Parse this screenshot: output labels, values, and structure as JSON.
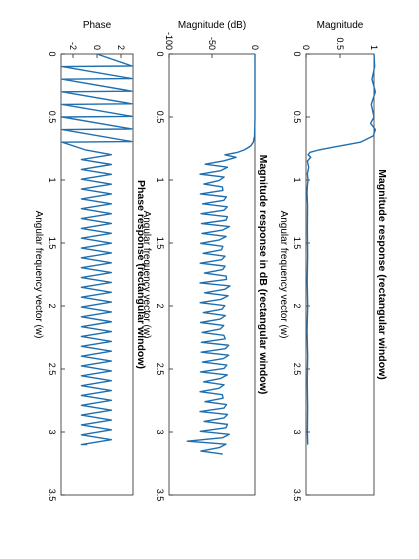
{
  "chart_data": [
    {
      "type": "line",
      "title": "Magnitude response (rectangular window)",
      "xlabel": "Angular frequency vector (w)",
      "ylabel": "Magnitude",
      "xlim": [
        0,
        3.5
      ],
      "ylim": [
        0,
        1
      ],
      "x_ticks": [
        0,
        0.5,
        1,
        1.5,
        2,
        2.5,
        3,
        3.5
      ],
      "x_tick_labels": [
        "0",
        "0.5",
        "1",
        "1.5",
        "2",
        "2.5",
        "3",
        "3.5"
      ],
      "y_ticks": [
        0,
        0.5,
        1
      ],
      "y_tick_labels": [
        "0",
        "0.5",
        "1"
      ],
      "grid": false,
      "series": [
        {
          "x": [
            0,
            0.1,
            0.2,
            0.3,
            0.4,
            0.5,
            0.55,
            0.6,
            0.65,
            0.7,
            0.72,
            0.74,
            0.76,
            0.78,
            0.8,
            0.82,
            0.85,
            0.9,
            0.95,
            1.0,
            1.05,
            1.1,
            1.2,
            1.4,
            1.6,
            1.8,
            2.0,
            2.2,
            2.4,
            2.6,
            2.8,
            3.0,
            3.1
          ],
          "y": [
            1.0,
            1.01,
            0.97,
            1.02,
            0.96,
            1.0,
            0.95,
            1.02,
            0.99,
            0.8,
            0.6,
            0.4,
            0.2,
            0.06,
            0.03,
            0.07,
            0.02,
            0.04,
            0.02,
            0.03,
            0.02,
            0.02,
            0.02,
            0.015,
            0.015,
            0.015,
            0.015,
            0.015,
            0.015,
            0.015,
            0.015,
            0.015,
            0.015
          ]
        }
      ]
    },
    {
      "type": "line",
      "title": "Magnitude response in dB (rectangular window)",
      "xlabel": "Angular frequency vector (w)",
      "ylabel": "Magnitude (dB)",
      "xlim": [
        0,
        3.5
      ],
      "ylim": [
        -100,
        0
      ],
      "x_ticks": [
        0,
        0.5,
        1,
        1.5,
        2,
        2.5,
        3,
        3.5
      ],
      "x_tick_labels": [
        "0",
        "0.5",
        "1",
        "1.5",
        "2",
        "2.5",
        "3",
        "3.5"
      ],
      "y_ticks": [
        -100,
        -50,
        0
      ],
      "y_tick_labels": [
        "-100",
        "-50",
        "0"
      ],
      "grid": false,
      "series": [
        {
          "x": [
            0,
            0.5,
            0.65,
            0.7,
            0.73,
            0.76,
            0.78,
            0.8,
            0.82
          ],
          "y": [
            0,
            0,
            -0.5,
            -2,
            -5,
            -12,
            -20,
            -35,
            -22
          ]
        }
      ]
    },
    {
      "type": "line",
      "title": "Phase response (rectangular window)",
      "xlabel": "Angular frequency vector (w)",
      "ylabel": "Phase",
      "xlim": [
        0,
        3.5
      ],
      "ylim": [
        -3,
        3
      ],
      "x_ticks": [
        0,
        0.5,
        1,
        1.5,
        2,
        2.5,
        3,
        3.5
      ],
      "x_tick_labels": [
        "0",
        "0.5",
        "1",
        "1.5",
        "2",
        "2.5",
        "3",
        "3.5"
      ],
      "y_ticks": [
        -2,
        0,
        2
      ],
      "y_tick_labels": [
        "-2",
        "0",
        "2"
      ],
      "grid": false,
      "series": [
        {
          "x": [
            0,
            0.095,
            0.1,
            0.195,
            0.2,
            0.295,
            0.3,
            0.395,
            0.4,
            0.495,
            0.5,
            0.595,
            0.6,
            0.695,
            0.7,
            0.76
          ],
          "y": [
            0,
            2.9,
            -2.9,
            2.9,
            -2.9,
            2.9,
            -2.9,
            2.9,
            -2.9,
            2.9,
            -2.9,
            2.9,
            -2.9,
            2.9,
            -2.9,
            -1.0
          ]
        }
      ]
    }
  ]
}
